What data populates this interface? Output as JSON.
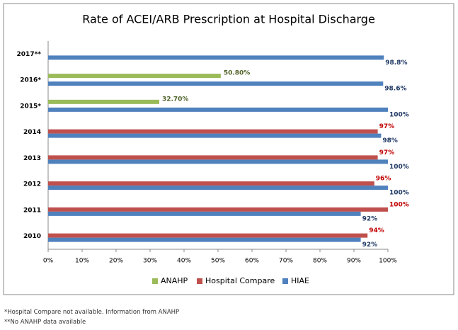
{
  "chart_data": {
    "type": "bar",
    "orientation": "horizontal",
    "title": "Rate of ACEI/ARB Prescription at Hospital Discharge",
    "categories": [
      "2017**",
      "2016*",
      "2015*",
      "2014",
      "2013",
      "2012",
      "2011",
      "2010"
    ],
    "series": [
      {
        "name": "ANAHP",
        "color": "#9bbb59",
        "values": [
          null,
          50.8,
          32.7,
          null,
          null,
          null,
          null,
          null
        ],
        "value_labels": [
          null,
          "50.80%",
          "32.70%",
          null,
          null,
          null,
          null,
          null
        ],
        "label_color": "#4f6228"
      },
      {
        "name": "Hospital Compare",
        "color": "#c0504d",
        "values": [
          null,
          null,
          null,
          97,
          97,
          96,
          100,
          94
        ],
        "value_labels": [
          null,
          null,
          null,
          "97%",
          "97%",
          "96%",
          "100%",
          "94%"
        ],
        "label_color": "#c00000"
      },
      {
        "name": "HIAE",
        "color": "#4f81bd",
        "values": [
          98.8,
          98.6,
          100,
          98,
          100,
          100,
          92,
          92
        ],
        "value_labels": [
          "98.8%",
          "98.6%",
          "100%",
          "98%",
          "100%",
          "100%",
          "92%",
          "92%"
        ],
        "label_color": "#1f3864"
      }
    ],
    "xlim": [
      0,
      100
    ],
    "xticks": [
      {
        "value": 0,
        "label": "0%"
      },
      {
        "value": 10,
        "label": "10%"
      },
      {
        "value": 20,
        "label": "20%"
      },
      {
        "value": 30,
        "label": "30%"
      },
      {
        "value": 40,
        "label": "40%"
      },
      {
        "value": 50,
        "label": "50%"
      },
      {
        "value": 60,
        "label": "60%"
      },
      {
        "value": 70,
        "label": "70%"
      },
      {
        "value": 80,
        "label": "80%"
      },
      {
        "value": 90,
        "label": "90%"
      },
      {
        "value": 100,
        "label": "100%"
      }
    ],
    "grid": false,
    "legend": "bottom"
  },
  "footnotes": [
    "*Hospital Compare not available. Information from ANAHP",
    "**No ANAHP data available"
  ]
}
